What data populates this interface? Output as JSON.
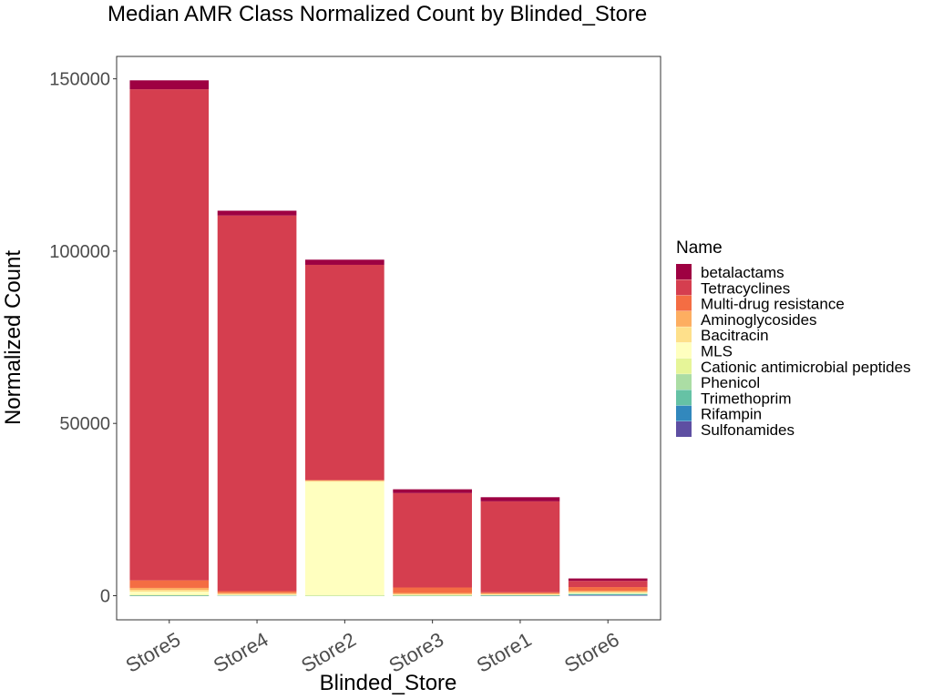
{
  "chart_data": {
    "type": "bar",
    "stacked": true,
    "title": "Median AMR Class Normalized Count by Blinded_Store",
    "xlabel": "Blinded_Store",
    "ylabel": "Normalized Count",
    "ylim": [
      -7000,
      156500
    ],
    "yticks": [
      0,
      50000,
      100000,
      150000
    ],
    "ytick_labels": [
      "0",
      "50000",
      "100000",
      "150000"
    ],
    "grid": false,
    "legend_position": "right",
    "legend_title": "Name",
    "categories": [
      "Store5",
      "Store4",
      "Store2",
      "Store3",
      "Store1",
      "Store6"
    ],
    "series": [
      {
        "name": "betalactams",
        "color": "#9E0142",
        "values": [
          2600,
          1400,
          1500,
          1100,
          1200,
          700
        ]
      },
      {
        "name": "Tetracyclines",
        "color": "#D53E4F",
        "values": [
          142500,
          109000,
          62500,
          27400,
          26400,
          1800
        ]
      },
      {
        "name": "Multi-drug resistance",
        "color": "#F46D43",
        "values": [
          2200,
          500,
          0,
          1600,
          300,
          1100
        ]
      },
      {
        "name": "Aminoglycosides",
        "color": "#FDAE61",
        "values": [
          600,
          350,
          200,
          350,
          250,
          350
        ]
      },
      {
        "name": "Bacitracin",
        "color": "#FEE08B",
        "values": [
          500,
          150,
          250,
          150,
          150,
          100
        ]
      },
      {
        "name": "MLS",
        "color": "#FFFFBF",
        "values": [
          900,
          80,
          33000,
          150,
          60,
          200
        ]
      },
      {
        "name": "Cationic antimicrobial peptides",
        "color": "#E6F598",
        "values": [
          150,
          40,
          30,
          50,
          40,
          150
        ]
      },
      {
        "name": "Phenicol",
        "color": "#ABDDA4",
        "values": [
          40,
          20,
          10,
          20,
          80,
          150
        ]
      },
      {
        "name": "Trimethoprim",
        "color": "#66C2A5",
        "values": [
          30,
          20,
          10,
          20,
          60,
          200
        ]
      },
      {
        "name": "Rifampin",
        "color": "#3288BD",
        "values": [
          20,
          20,
          10,
          20,
          20,
          100
        ]
      },
      {
        "name": "Sulfonamides",
        "color": "#5E4FA2",
        "values": [
          20,
          150,
          10,
          20,
          20,
          150
        ]
      }
    ]
  }
}
